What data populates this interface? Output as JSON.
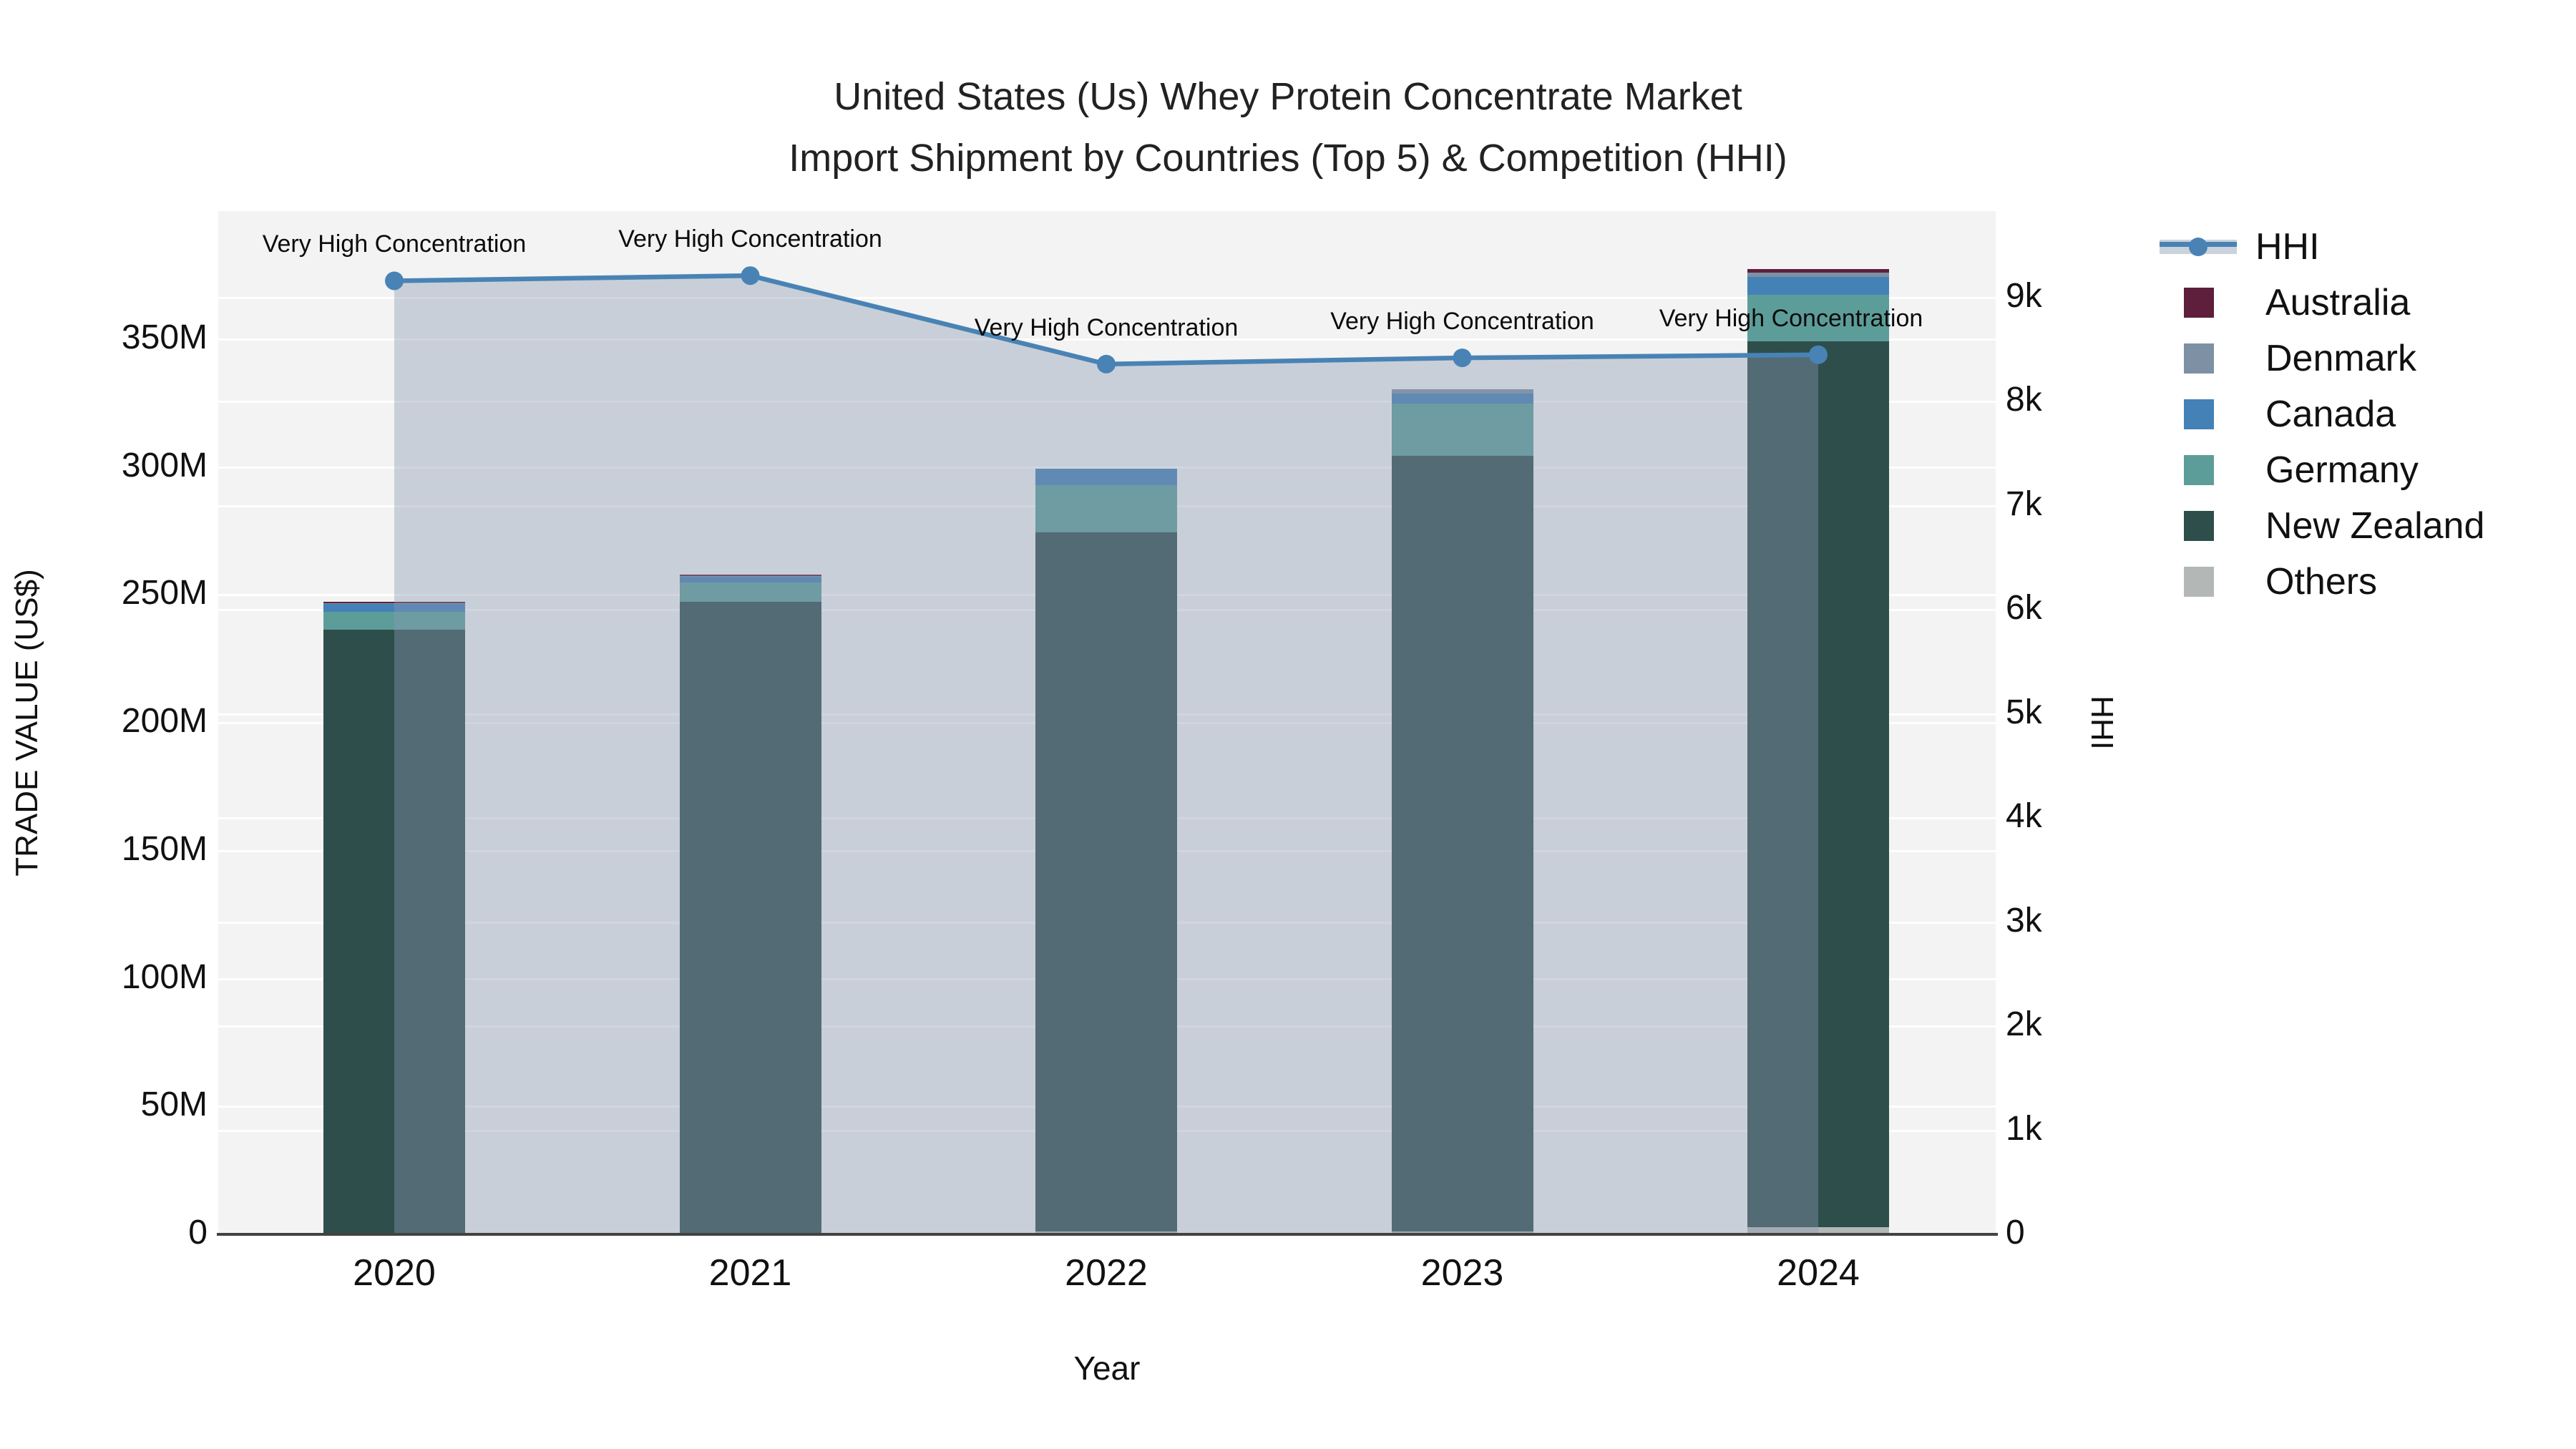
{
  "title": {
    "line1": "United States (Us) Whey Protein Concentrate Market",
    "line2": "Import Shipment by Countries (Top 5) & Competition (HHI)"
  },
  "chart_data": {
    "type": "bar+line",
    "x_categories": [
      "2020",
      "2021",
      "2022",
      "2023",
      "2024"
    ],
    "bar_unit": "M US$",
    "bar_series_bottom_to_top": [
      {
        "name": "Others",
        "color": "#b3b8b6",
        "values": [
          0.4,
          0.3,
          1.0,
          1.0,
          2.8
        ]
      },
      {
        "name": "New Zealand",
        "color": "#2d4e4b",
        "values": [
          236.0,
          247.0,
          273.5,
          303.2,
          346.2
        ]
      },
      {
        "name": "Germany",
        "color": "#5d9d99",
        "values": [
          7.0,
          7.4,
          18.3,
          20.6,
          18.3
        ]
      },
      {
        "name": "Canada",
        "color": "#4481b6",
        "values": [
          3.0,
          2.3,
          6.5,
          4.0,
          7.1
        ]
      },
      {
        "name": "Denmark",
        "color": "#7e90a4",
        "values": [
          0.5,
          0.4,
          0.0,
          1.6,
          1.6
        ]
      },
      {
        "name": "Australia",
        "color": "#5e1f3c",
        "values": [
          0.3,
          0.6,
          0.0,
          0.0,
          1.4
        ]
      }
    ],
    "line_series": {
      "name": "HHI",
      "color": "#4983b5",
      "area_fill": "rgba(140,153,177,0.40)",
      "values": [
        9160,
        9210,
        8360,
        8420,
        8450
      ]
    },
    "point_annotations": [
      "Very High Concentration",
      "Very High Concentration",
      "Very High Concentration",
      "Very High Concentration",
      "Very High Concentration"
    ],
    "left_axis": {
      "title": "TRADE VALUE (US$)",
      "tick_labels": [
        "0",
        "50M",
        "100M",
        "150M",
        "200M",
        "250M",
        "300M",
        "350M"
      ],
      "tick_values": [
        0,
        50,
        100,
        150,
        200,
        250,
        300,
        350
      ],
      "range_max": 400
    },
    "right_axis": {
      "title": "HHI",
      "tick_labels": [
        "0",
        "1k",
        "2k",
        "3k",
        "4k",
        "5k",
        "6k",
        "7k",
        "8k",
        "9k"
      ],
      "tick_values": [
        0,
        1000,
        2000,
        3000,
        4000,
        5000,
        6000,
        7000,
        8000,
        9000
      ],
      "range_max": 9830
    },
    "x_axis": {
      "title": "Year"
    },
    "plot_background": "#f2f3f2",
    "grid": true,
    "legend_position": "right"
  },
  "legend": {
    "items": [
      {
        "label": "HHI",
        "type": "line",
        "color": "#4983b5"
      },
      {
        "label": "Australia",
        "type": "square",
        "color": "#5e1f3c"
      },
      {
        "label": "Denmark",
        "type": "square",
        "color": "#7e90a4"
      },
      {
        "label": "Canada",
        "type": "square",
        "color": "#4481b6"
      },
      {
        "label": "Germany",
        "type": "square",
        "color": "#5d9d99"
      },
      {
        "label": "New Zealand",
        "type": "square",
        "color": "#2d4e4b"
      },
      {
        "label": "Others",
        "type": "square",
        "color": "#b3b8b6"
      }
    ]
  }
}
